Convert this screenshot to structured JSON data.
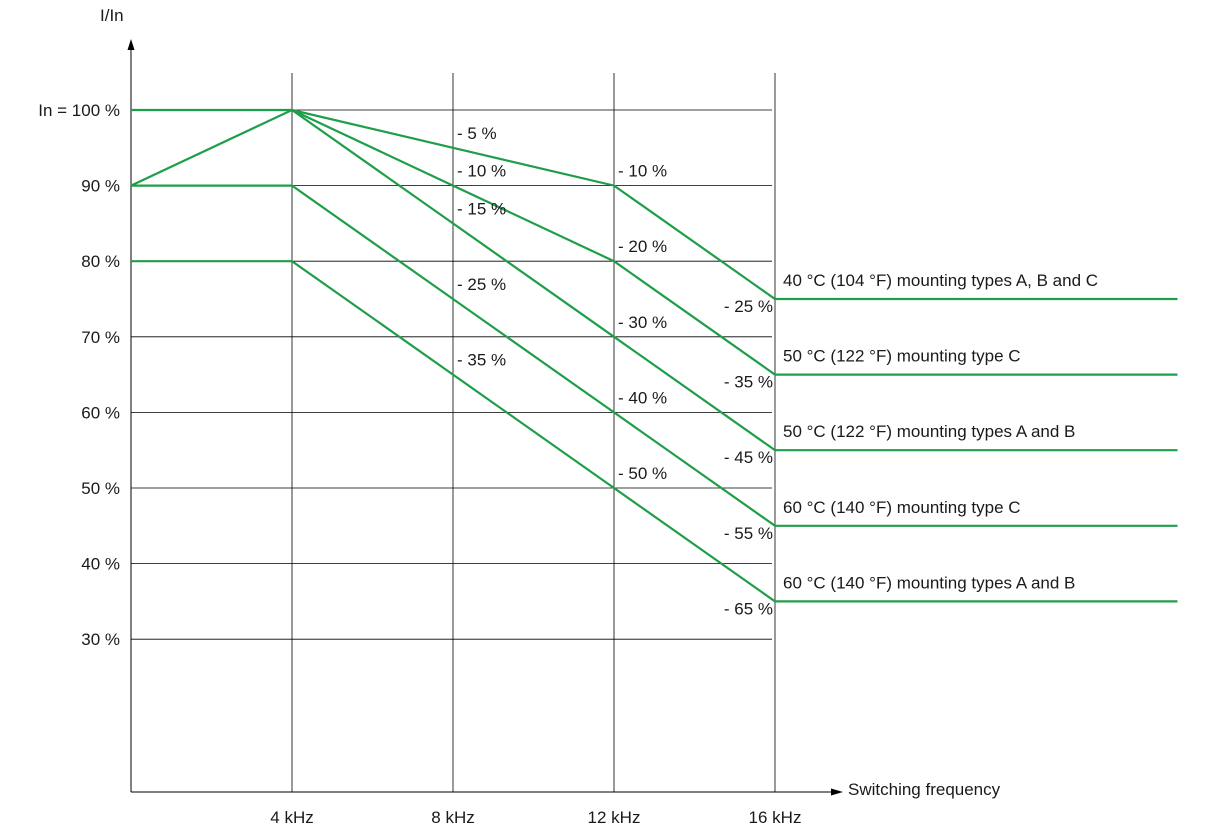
{
  "chart_data": {
    "type": "line",
    "ylabel": "I/In",
    "xlabel": "Switching frequency",
    "x_ticks": [
      {
        "value": 4,
        "label": "4 kHz"
      },
      {
        "value": 8,
        "label": "8 kHz"
      },
      {
        "value": 12,
        "label": "12 kHz"
      },
      {
        "value": 16,
        "label": "16 kHz"
      }
    ],
    "y_ticks": [
      {
        "value": 100,
        "label": "In = 100 %"
      },
      {
        "value": 90,
        "label": "90 %"
      },
      {
        "value": 80,
        "label": "80 %"
      },
      {
        "value": 70,
        "label": "70 %"
      },
      {
        "value": 60,
        "label": "60 %"
      },
      {
        "value": 50,
        "label": "50 %"
      },
      {
        "value": 40,
        "label": "40 %"
      },
      {
        "value": 30,
        "label": "30 %"
      }
    ],
    "xlim": [
      0,
      16
    ],
    "ylim": [
      0,
      100
    ],
    "grid": true,
    "line_color": "#1f9e4a",
    "series": [
      {
        "name": "40 °C (104 °F) mounting types A, B and C",
        "x": [
          0,
          4,
          8,
          12,
          16,
          26
        ],
        "y": [
          100,
          100,
          95,
          90,
          75,
          75
        ],
        "labels": [
          "",
          "",
          "- 5 %",
          "- 10 %",
          "- 25 %",
          ""
        ]
      },
      {
        "name": "50 °C (122 °F) mounting type C",
        "x": [
          4,
          8,
          12,
          16,
          26
        ],
        "y": [
          100,
          90,
          80,
          65,
          65
        ],
        "labels": [
          "",
          "- 10 %",
          "- 20 %",
          "- 35 %",
          ""
        ]
      },
      {
        "name": "50 °C (122 °F) mounting types A and B",
        "x": [
          0,
          4,
          8,
          12,
          16,
          26
        ],
        "y": [
          90,
          100,
          85,
          70,
          55,
          55
        ],
        "labels": [
          "",
          "",
          "- 15 %",
          "- 30 %",
          "- 45 %",
          ""
        ]
      },
      {
        "name": "60 °C (140 °F) mounting type C",
        "x": [
          0,
          4,
          8,
          12,
          16,
          26
        ],
        "y": [
          90,
          90,
          75,
          60,
          45,
          45
        ],
        "labels": [
          "",
          "",
          "- 25 %",
          "- 40 %",
          "- 55 %",
          ""
        ]
      },
      {
        "name": "60 °C (140 °F) mounting types A and B",
        "x": [
          0,
          4,
          8,
          12,
          16,
          26
        ],
        "y": [
          80,
          80,
          65,
          50,
          35,
          35
        ],
        "labels": [
          "",
          "",
          "- 35 %",
          "- 50 %",
          "- 65 %",
          ""
        ]
      }
    ]
  }
}
